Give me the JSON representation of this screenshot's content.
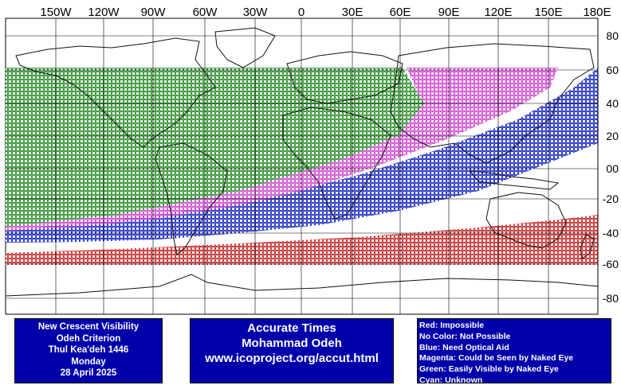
{
  "map": {
    "lon_labels": [
      "150W",
      "120W",
      "90W",
      "60W",
      "30W",
      "0",
      "30E",
      "60E",
      "90E",
      "120E",
      "150E",
      "180E"
    ],
    "lat_labels": [
      "80",
      "60",
      "40",
      "20",
      "00",
      "-20",
      "-40",
      "-60",
      "-80"
    ],
    "colors": {
      "impossible": "#c02020",
      "optical_aid": "#1020c0",
      "naked_eye": "#d040d0",
      "easily_visible": "#208a20"
    },
    "zones": [
      {
        "name": "Green: Easily Visible by Naked Eye",
        "color_key": "easily_visible"
      },
      {
        "name": "Magenta: Could be Seen by Naked Eye",
        "color_key": "naked_eye"
      },
      {
        "name": "Blue: Need Optical Aid",
        "color_key": "optical_aid"
      },
      {
        "name": "Red: Impossible",
        "color_key": "impossible"
      }
    ]
  },
  "info_left": {
    "line1": "New Crescent Visibility",
    "line2": "Odeh Criterion",
    "line3": "Thul Kea'deh 1446",
    "line4": "Monday",
    "line5": "28 April 2025"
  },
  "info_mid": {
    "line1": "Accurate Times",
    "line2": "Mohammad Odeh",
    "line3": "www.icoproject.org/accut.html"
  },
  "legend": {
    "red": "Red: Impossible",
    "none": "No Color: Not Possible",
    "blue": "Blue: Need Optical Aid",
    "magenta": "Magenta: Could be Seen by Naked Eye",
    "green": "Green: Easily Visible by Naked Eye",
    "cyan": "Cyan: Unknown"
  }
}
